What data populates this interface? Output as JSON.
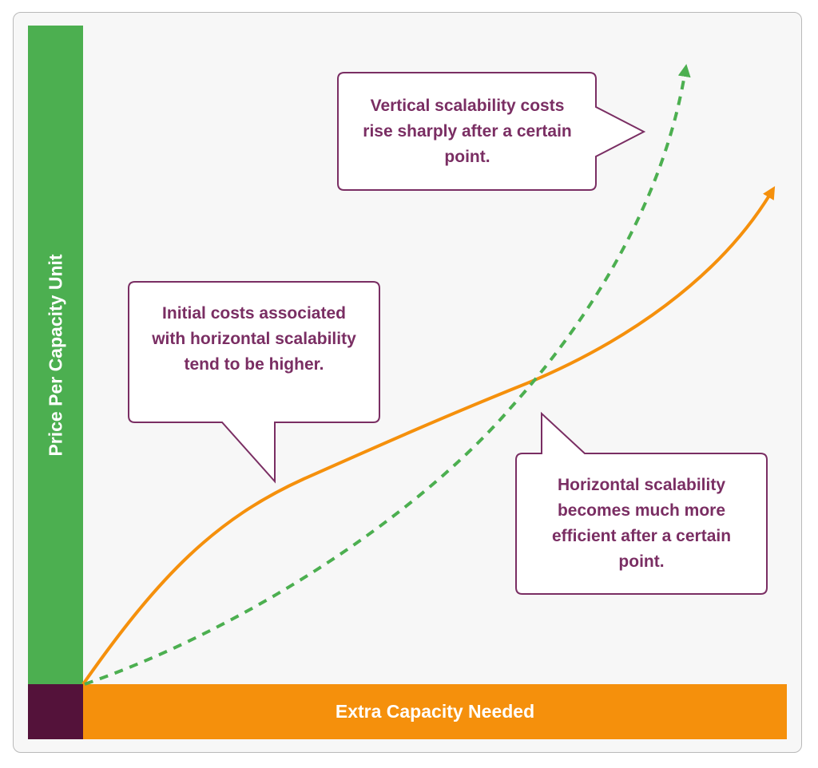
{
  "axes": {
    "y_label": "Price Per Capacity Unit",
    "x_label": "Extra Capacity Needed"
  },
  "curves": [
    {
      "name": "vertical-scalability",
      "style": "dashed",
      "color": "#4caf50"
    },
    {
      "name": "horizontal-scalability",
      "style": "solid",
      "color": "#f5900c"
    }
  ],
  "callouts": [
    {
      "id": "vertical",
      "text": "Vertical scalability costs rise sharply after a certain point."
    },
    {
      "id": "initial",
      "text": "Initial costs associated with horizontal scalability tend to be higher."
    },
    {
      "id": "horizontal",
      "text": "Horizontal scalability becomes much more efficient after a certain point."
    }
  ],
  "colors": {
    "callout_border": "#7a2e63",
    "callout_text": "#7a2e63",
    "corner": "#54123a"
  }
}
